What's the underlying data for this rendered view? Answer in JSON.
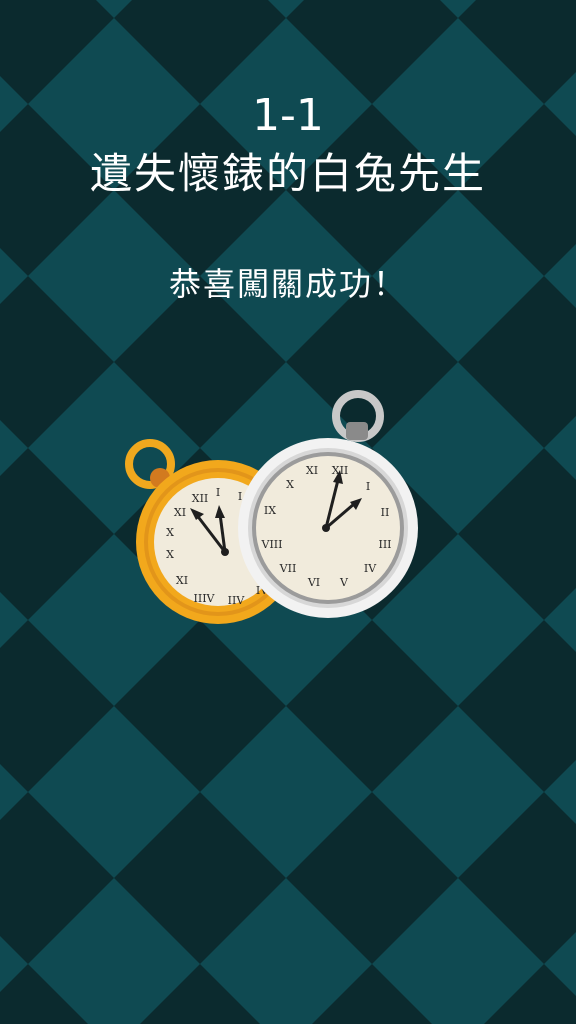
{
  "level": {
    "number": "1-1",
    "title": "遺失懷錶的白兔先生"
  },
  "result": {
    "message": "恭喜闖關成功！"
  },
  "watches": [
    {
      "name": "gold-pocket-watch",
      "case_color": "#f0a81e",
      "face_color": "#f1ebdc",
      "hour_hand_points_to": 11,
      "minute_hand_points_to": 12
    },
    {
      "name": "silver-pocket-watch",
      "case_color": "#e6e6e6",
      "face_color": "#f1ebdc",
      "hour_hand_points_to": 2,
      "minute_hand_points_to": 12
    }
  ],
  "colors": {
    "checker_light": "#0f4a52",
    "checker_dark": "#0b2a2e",
    "text": "#ffffff"
  }
}
